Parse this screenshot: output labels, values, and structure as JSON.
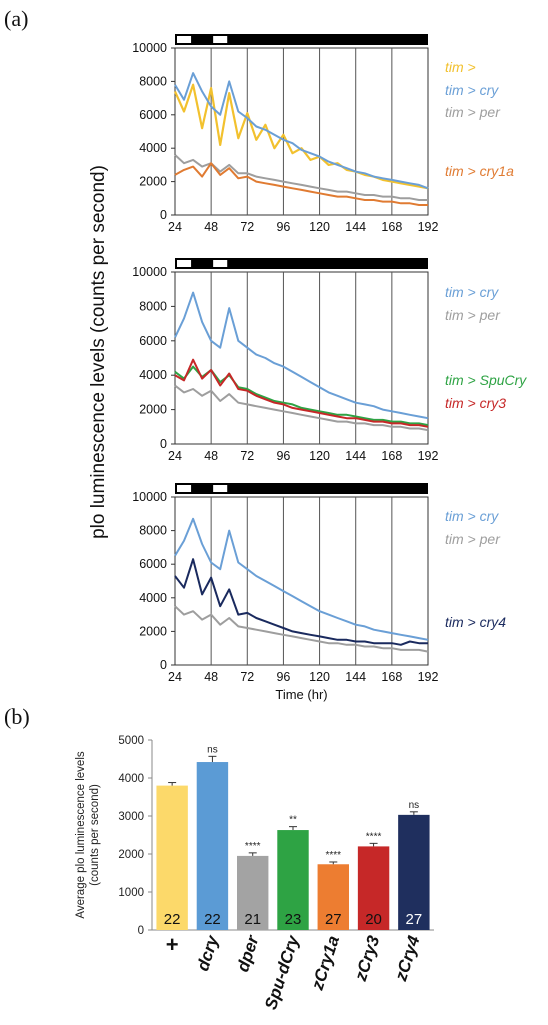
{
  "figure": {
    "label_a": "(a)",
    "label_b": "(b)"
  },
  "chart_data": [
    {
      "type": "line",
      "panel": "a-top",
      "xlabel": "",
      "ylabel": "plo luminescence levels (counts per second)",
      "ylim": [
        0,
        10000
      ],
      "yticks": [
        0,
        2000,
        4000,
        6000,
        8000,
        10000
      ],
      "xticks": [
        24,
        48,
        72,
        96,
        120,
        144,
        168,
        192
      ],
      "xlim": [
        24,
        192
      ],
      "light_dark_bar": [
        "light",
        "dark",
        "light",
        "dark"
      ],
      "series": [
        {
          "name": "tim >",
          "color": "#f2c12e",
          "x": [
            24,
            30,
            36,
            42,
            48,
            54,
            60,
            66,
            72,
            78,
            84,
            90,
            96,
            102,
            108,
            114,
            120,
            126,
            132,
            138,
            144,
            150,
            156,
            162,
            168,
            174,
            180,
            186,
            192
          ],
          "y": [
            7400,
            6200,
            7800,
            5200,
            7600,
            4200,
            7300,
            4600,
            6100,
            4500,
            5400,
            4000,
            4800,
            3700,
            4000,
            3300,
            3500,
            3000,
            3100,
            2700,
            2600,
            2400,
            2300,
            2100,
            2000,
            1900,
            1800,
            1700,
            1600
          ]
        },
        {
          "name": "tim > cry",
          "color": "#6a9fd6",
          "x": [
            24,
            30,
            36,
            42,
            48,
            54,
            60,
            66,
            72,
            78,
            84,
            90,
            96,
            102,
            108,
            114,
            120,
            126,
            132,
            138,
            144,
            150,
            156,
            162,
            168,
            174,
            180,
            186,
            192
          ],
          "y": [
            7800,
            6900,
            8500,
            7400,
            6500,
            6000,
            8000,
            6200,
            5800,
            5300,
            5100,
            4800,
            4500,
            4300,
            3900,
            3700,
            3500,
            3200,
            3000,
            2800,
            2600,
            2500,
            2300,
            2200,
            2100,
            2000,
            1900,
            1800,
            1600
          ]
        },
        {
          "name": "tim > per",
          "color": "#9e9e9e",
          "x": [
            24,
            30,
            36,
            42,
            48,
            54,
            60,
            66,
            72,
            78,
            84,
            90,
            96,
            102,
            108,
            114,
            120,
            126,
            132,
            138,
            144,
            150,
            156,
            162,
            168,
            174,
            180,
            186,
            192
          ],
          "y": [
            3600,
            3100,
            3300,
            2900,
            3100,
            2600,
            3000,
            2500,
            2500,
            2300,
            2200,
            2100,
            2000,
            1900,
            1800,
            1700,
            1600,
            1500,
            1400,
            1400,
            1300,
            1200,
            1200,
            1100,
            1100,
            1000,
            1000,
            900,
            900
          ]
        },
        {
          "name": "tim > cry1a",
          "color": "#e07b32",
          "x": [
            24,
            30,
            36,
            42,
            48,
            54,
            60,
            66,
            72,
            78,
            84,
            90,
            96,
            102,
            108,
            114,
            120,
            126,
            132,
            138,
            144,
            150,
            156,
            162,
            168,
            174,
            180,
            186,
            192
          ],
          "y": [
            2400,
            2700,
            2900,
            2300,
            3100,
            2400,
            2800,
            2200,
            2300,
            2000,
            1900,
            1800,
            1700,
            1600,
            1500,
            1400,
            1300,
            1200,
            1100,
            1100,
            1000,
            900,
            900,
            800,
            800,
            700,
            700,
            600,
            600
          ]
        }
      ]
    },
    {
      "type": "line",
      "panel": "a-middle",
      "xlabel": "",
      "ylabel": "",
      "ylim": [
        0,
        10000
      ],
      "yticks": [
        0,
        2000,
        4000,
        6000,
        8000,
        10000
      ],
      "xticks": [
        24,
        48,
        72,
        96,
        120,
        144,
        168,
        192
      ],
      "xlim": [
        24,
        192
      ],
      "light_dark_bar": [
        "light",
        "dark",
        "light",
        "dark"
      ],
      "series": [
        {
          "name": "tim > cry",
          "color": "#6a9fd6",
          "x": [
            24,
            30,
            36,
            42,
            48,
            54,
            60,
            66,
            72,
            78,
            84,
            90,
            96,
            102,
            108,
            114,
            120,
            126,
            132,
            138,
            144,
            150,
            156,
            162,
            168,
            174,
            180,
            186,
            192
          ],
          "y": [
            6200,
            7300,
            8800,
            7100,
            6000,
            5600,
            7900,
            6000,
            5600,
            5200,
            5000,
            4700,
            4500,
            4200,
            3900,
            3600,
            3300,
            3000,
            2800,
            2600,
            2400,
            2300,
            2200,
            2000,
            1900,
            1800,
            1700,
            1600,
            1500
          ]
        },
        {
          "name": "tim > per",
          "color": "#9e9e9e",
          "x": [
            24,
            30,
            36,
            42,
            48,
            54,
            60,
            66,
            72,
            78,
            84,
            90,
            96,
            102,
            108,
            114,
            120,
            126,
            132,
            138,
            144,
            150,
            156,
            162,
            168,
            174,
            180,
            186,
            192
          ],
          "y": [
            3400,
            3000,
            3200,
            2800,
            3100,
            2500,
            2900,
            2400,
            2300,
            2200,
            2100,
            2000,
            1900,
            1800,
            1700,
            1600,
            1500,
            1400,
            1300,
            1300,
            1200,
            1200,
            1100,
            1100,
            1000,
            1000,
            900,
            900,
            800
          ]
        },
        {
          "name": "tim > SpuCry",
          "color": "#2ea344",
          "x": [
            24,
            30,
            36,
            42,
            48,
            54,
            60,
            66,
            72,
            78,
            84,
            90,
            96,
            102,
            108,
            114,
            120,
            126,
            132,
            138,
            144,
            150,
            156,
            162,
            168,
            174,
            180,
            186,
            192
          ],
          "y": [
            4200,
            3800,
            4500,
            3900,
            4300,
            3600,
            4000,
            3300,
            3200,
            2900,
            2700,
            2500,
            2400,
            2300,
            2100,
            2000,
            1900,
            1800,
            1700,
            1700,
            1600,
            1500,
            1400,
            1400,
            1300,
            1300,
            1200,
            1200,
            1100
          ]
        },
        {
          "name": "tim > cry3",
          "color": "#c62828",
          "x": [
            24,
            30,
            36,
            42,
            48,
            54,
            60,
            66,
            72,
            78,
            84,
            90,
            96,
            102,
            108,
            114,
            120,
            126,
            132,
            138,
            144,
            150,
            156,
            162,
            168,
            174,
            180,
            186,
            192
          ],
          "y": [
            4000,
            3700,
            4900,
            3800,
            4300,
            3400,
            4100,
            3200,
            3100,
            2800,
            2600,
            2400,
            2300,
            2100,
            2000,
            1900,
            1800,
            1700,
            1600,
            1500,
            1500,
            1400,
            1300,
            1300,
            1200,
            1200,
            1100,
            1100,
            1000
          ]
        }
      ]
    },
    {
      "type": "line",
      "panel": "a-bottom",
      "xlabel": "Time (hr)",
      "ylabel": "",
      "ylim": [
        0,
        10000
      ],
      "yticks": [
        0,
        2000,
        4000,
        6000,
        8000,
        10000
      ],
      "xticks": [
        24,
        48,
        72,
        96,
        120,
        144,
        168,
        192
      ],
      "xlim": [
        24,
        192
      ],
      "light_dark_bar": [
        "light",
        "dark",
        "light",
        "dark"
      ],
      "series": [
        {
          "name": "tim > cry",
          "color": "#6a9fd6",
          "x": [
            24,
            30,
            36,
            42,
            48,
            54,
            60,
            66,
            72,
            78,
            84,
            90,
            96,
            102,
            108,
            114,
            120,
            126,
            132,
            138,
            144,
            150,
            156,
            162,
            168,
            174,
            180,
            186,
            192
          ],
          "y": [
            6500,
            7400,
            8700,
            7200,
            6100,
            5700,
            8000,
            6100,
            5700,
            5300,
            5000,
            4700,
            4400,
            4100,
            3800,
            3500,
            3200,
            3000,
            2800,
            2600,
            2400,
            2300,
            2100,
            2000,
            1900,
            1800,
            1700,
            1600,
            1500
          ]
        },
        {
          "name": "tim > per",
          "color": "#9e9e9e",
          "x": [
            24,
            30,
            36,
            42,
            48,
            54,
            60,
            66,
            72,
            78,
            84,
            90,
            96,
            102,
            108,
            114,
            120,
            126,
            132,
            138,
            144,
            150,
            156,
            162,
            168,
            174,
            180,
            186,
            192
          ],
          "y": [
            3500,
            3000,
            3200,
            2700,
            3000,
            2400,
            2800,
            2300,
            2200,
            2100,
            2000,
            1900,
            1800,
            1700,
            1600,
            1500,
            1400,
            1300,
            1300,
            1200,
            1200,
            1100,
            1100,
            1000,
            1000,
            900,
            900,
            900,
            800
          ]
        },
        {
          "name": "tim > cry4",
          "color": "#1a2a5e",
          "x": [
            24,
            30,
            36,
            42,
            48,
            54,
            60,
            66,
            72,
            78,
            84,
            90,
            96,
            102,
            108,
            114,
            120,
            126,
            132,
            138,
            144,
            150,
            156,
            162,
            168,
            174,
            180,
            186,
            192
          ],
          "y": [
            5300,
            4600,
            6300,
            4200,
            5200,
            3500,
            4500,
            3000,
            3100,
            2800,
            2600,
            2400,
            2200,
            2000,
            1900,
            1800,
            1700,
            1600,
            1500,
            1500,
            1400,
            1400,
            1300,
            1300,
            1300,
            1200,
            1400,
            1300,
            1300
          ]
        }
      ]
    },
    {
      "type": "bar",
      "panel": "b",
      "ylabel_lines": [
        "Average plo luminescence  levels",
        "(counts per second)"
      ],
      "ylim": [
        0,
        5000
      ],
      "yticks": [
        0,
        1000,
        2000,
        3000,
        4000,
        5000
      ],
      "categories": [
        "+",
        "dcry",
        "dper",
        "Spu-dCry",
        "zCry1a",
        "zCry3",
        "zCry4"
      ],
      "values": [
        3800,
        4420,
        1950,
        2630,
        1730,
        2200,
        3030
      ],
      "errors": [
        80,
        150,
        80,
        90,
        60,
        80,
        80
      ],
      "n": [
        "22",
        "22",
        "21",
        "23",
        "27",
        "20",
        "27"
      ],
      "significance": [
        "",
        "ns",
        "****",
        "**",
        "****",
        "****",
        "ns"
      ],
      "colors": [
        "#fcd96a",
        "#5b9bd5",
        "#a3a3a3",
        "#2ea344",
        "#ed7d31",
        "#c62828",
        "#1f2f5e"
      ],
      "n_label_colors": [
        "#111111",
        "#111111",
        "#111111",
        "#111111",
        "#111111",
        "#111111",
        "#ffffff"
      ]
    }
  ]
}
